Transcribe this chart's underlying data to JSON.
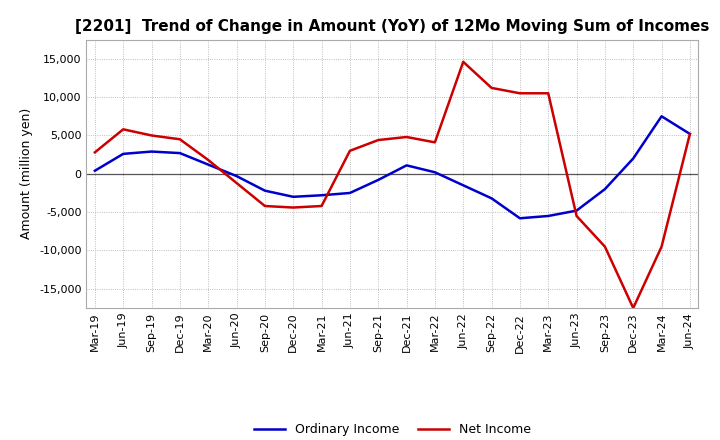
{
  "title": "[2201]  Trend of Change in Amount (YoY) of 12Mo Moving Sum of Incomes",
  "ylabel": "Amount (million yen)",
  "background_color": "#ffffff",
  "ylim": [
    -17500,
    17500
  ],
  "yticks": [
    -15000,
    -10000,
    -5000,
    0,
    5000,
    10000,
    15000
  ],
  "x_labels": [
    "Mar-19",
    "Jun-19",
    "Sep-19",
    "Dec-19",
    "Mar-20",
    "Jun-20",
    "Sep-20",
    "Dec-20",
    "Mar-21",
    "Jun-21",
    "Sep-21",
    "Dec-21",
    "Mar-22",
    "Jun-22",
    "Sep-22",
    "Dec-22",
    "Mar-23",
    "Jun-23",
    "Sep-23",
    "Dec-23",
    "Mar-24",
    "Jun-24"
  ],
  "ordinary_income": [
    400,
    2600,
    2900,
    2700,
    1200,
    -300,
    -2200,
    -3000,
    -2800,
    -2500,
    -800,
    1100,
    200,
    -1500,
    -3200,
    -5800,
    -5500,
    -4800,
    -2000,
    2000,
    7500,
    5200
  ],
  "net_income": [
    2800,
    5800,
    5000,
    4500,
    1800,
    -1200,
    -4200,
    -4400,
    -4200,
    3000,
    4400,
    4800,
    4100,
    14600,
    11200,
    10500,
    10500,
    -5500,
    -9500,
    -17500,
    -9500,
    5200
  ],
  "ordinary_color": "#0000cc",
  "net_color": "#cc0000",
  "line_width": 1.8,
  "title_fontsize": 11,
  "axis_fontsize": 9,
  "tick_fontsize": 8
}
